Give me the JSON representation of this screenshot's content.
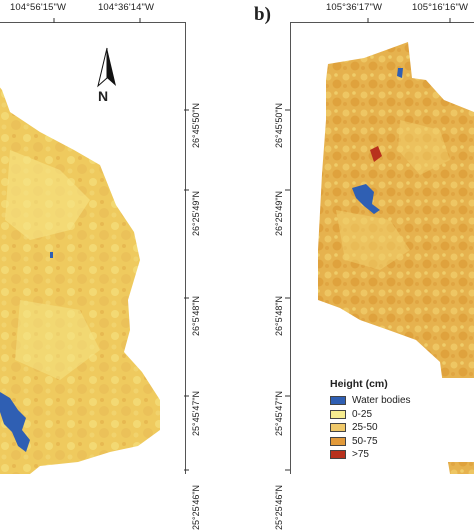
{
  "panel_b_label": "b)",
  "north_arrow_label": "N",
  "panel_a": {
    "lon_labels": [
      "104°56'15\"W",
      "104°36'14\"W"
    ],
    "lat_labels": [
      "26°45'50\"N",
      "26°25'49\"N",
      "26°5'48\"N",
      "25°45'47\"N",
      "25°25'46\"N"
    ]
  },
  "panel_b": {
    "lon_labels": [
      "105°36'17\"W",
      "105°16'16\"W"
    ],
    "lat_labels": [
      "26°45'50\"N",
      "26°25'49\"N",
      "26°5'48\"N",
      "25°45'47\"N",
      "25°25'46\"N"
    ]
  },
  "legend": {
    "title": "Height (cm)",
    "items": [
      {
        "label": "Water bodies",
        "color": "#2f5fb3"
      },
      {
        "label": "0-25",
        "color": "#f6ec8f"
      },
      {
        "label": "25-50",
        "color": "#f0c96a"
      },
      {
        "label": "50-75",
        "color": "#e29a3a"
      },
      {
        "label": ">75",
        "color": "#b8311d"
      }
    ]
  },
  "colors": {
    "land_base": "#efca5e",
    "land_light": "#f5e07c",
    "land_dark": "#e0a744",
    "water": "#2f5fb3",
    "tall": "#b8311d"
  }
}
